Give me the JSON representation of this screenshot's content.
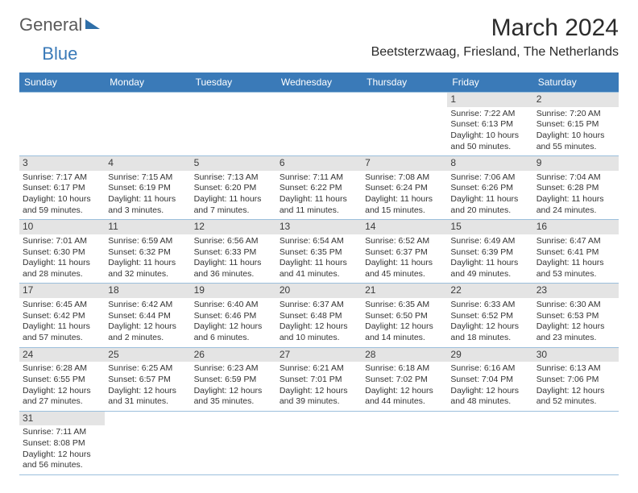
{
  "logo": {
    "part1": "General",
    "part2": "Blue"
  },
  "title": "March 2024",
  "location": "Beetsterzwaag, Friesland, The Netherlands",
  "columns": [
    "Sunday",
    "Monday",
    "Tuesday",
    "Wednesday",
    "Thursday",
    "Friday",
    "Saturday"
  ],
  "colors": {
    "header_bg": "#3a7ab8",
    "header_text": "#ffffff",
    "border": "#9bbfdc",
    "daynum_bg": "#e4e4e4",
    "text": "#333333"
  },
  "typography": {
    "title_fontsize": 30,
    "location_fontsize": 16,
    "header_fontsize": 12,
    "cell_fontsize": 10.5
  },
  "weeks": [
    [
      null,
      null,
      null,
      null,
      null,
      {
        "day": "1",
        "sunrise": "Sunrise: 7:22 AM",
        "sunset": "Sunset: 6:13 PM",
        "daylight": "Daylight: 10 hours and 50 minutes."
      },
      {
        "day": "2",
        "sunrise": "Sunrise: 7:20 AM",
        "sunset": "Sunset: 6:15 PM",
        "daylight": "Daylight: 10 hours and 55 minutes."
      }
    ],
    [
      {
        "day": "3",
        "sunrise": "Sunrise: 7:17 AM",
        "sunset": "Sunset: 6:17 PM",
        "daylight": "Daylight: 10 hours and 59 minutes."
      },
      {
        "day": "4",
        "sunrise": "Sunrise: 7:15 AM",
        "sunset": "Sunset: 6:19 PM",
        "daylight": "Daylight: 11 hours and 3 minutes."
      },
      {
        "day": "5",
        "sunrise": "Sunrise: 7:13 AM",
        "sunset": "Sunset: 6:20 PM",
        "daylight": "Daylight: 11 hours and 7 minutes."
      },
      {
        "day": "6",
        "sunrise": "Sunrise: 7:11 AM",
        "sunset": "Sunset: 6:22 PM",
        "daylight": "Daylight: 11 hours and 11 minutes."
      },
      {
        "day": "7",
        "sunrise": "Sunrise: 7:08 AM",
        "sunset": "Sunset: 6:24 PM",
        "daylight": "Daylight: 11 hours and 15 minutes."
      },
      {
        "day": "8",
        "sunrise": "Sunrise: 7:06 AM",
        "sunset": "Sunset: 6:26 PM",
        "daylight": "Daylight: 11 hours and 20 minutes."
      },
      {
        "day": "9",
        "sunrise": "Sunrise: 7:04 AM",
        "sunset": "Sunset: 6:28 PM",
        "daylight": "Daylight: 11 hours and 24 minutes."
      }
    ],
    [
      {
        "day": "10",
        "sunrise": "Sunrise: 7:01 AM",
        "sunset": "Sunset: 6:30 PM",
        "daylight": "Daylight: 11 hours and 28 minutes."
      },
      {
        "day": "11",
        "sunrise": "Sunrise: 6:59 AM",
        "sunset": "Sunset: 6:32 PM",
        "daylight": "Daylight: 11 hours and 32 minutes."
      },
      {
        "day": "12",
        "sunrise": "Sunrise: 6:56 AM",
        "sunset": "Sunset: 6:33 PM",
        "daylight": "Daylight: 11 hours and 36 minutes."
      },
      {
        "day": "13",
        "sunrise": "Sunrise: 6:54 AM",
        "sunset": "Sunset: 6:35 PM",
        "daylight": "Daylight: 11 hours and 41 minutes."
      },
      {
        "day": "14",
        "sunrise": "Sunrise: 6:52 AM",
        "sunset": "Sunset: 6:37 PM",
        "daylight": "Daylight: 11 hours and 45 minutes."
      },
      {
        "day": "15",
        "sunrise": "Sunrise: 6:49 AM",
        "sunset": "Sunset: 6:39 PM",
        "daylight": "Daylight: 11 hours and 49 minutes."
      },
      {
        "day": "16",
        "sunrise": "Sunrise: 6:47 AM",
        "sunset": "Sunset: 6:41 PM",
        "daylight": "Daylight: 11 hours and 53 minutes."
      }
    ],
    [
      {
        "day": "17",
        "sunrise": "Sunrise: 6:45 AM",
        "sunset": "Sunset: 6:42 PM",
        "daylight": "Daylight: 11 hours and 57 minutes."
      },
      {
        "day": "18",
        "sunrise": "Sunrise: 6:42 AM",
        "sunset": "Sunset: 6:44 PM",
        "daylight": "Daylight: 12 hours and 2 minutes."
      },
      {
        "day": "19",
        "sunrise": "Sunrise: 6:40 AM",
        "sunset": "Sunset: 6:46 PM",
        "daylight": "Daylight: 12 hours and 6 minutes."
      },
      {
        "day": "20",
        "sunrise": "Sunrise: 6:37 AM",
        "sunset": "Sunset: 6:48 PM",
        "daylight": "Daylight: 12 hours and 10 minutes."
      },
      {
        "day": "21",
        "sunrise": "Sunrise: 6:35 AM",
        "sunset": "Sunset: 6:50 PM",
        "daylight": "Daylight: 12 hours and 14 minutes."
      },
      {
        "day": "22",
        "sunrise": "Sunrise: 6:33 AM",
        "sunset": "Sunset: 6:52 PM",
        "daylight": "Daylight: 12 hours and 18 minutes."
      },
      {
        "day": "23",
        "sunrise": "Sunrise: 6:30 AM",
        "sunset": "Sunset: 6:53 PM",
        "daylight": "Daylight: 12 hours and 23 minutes."
      }
    ],
    [
      {
        "day": "24",
        "sunrise": "Sunrise: 6:28 AM",
        "sunset": "Sunset: 6:55 PM",
        "daylight": "Daylight: 12 hours and 27 minutes."
      },
      {
        "day": "25",
        "sunrise": "Sunrise: 6:25 AM",
        "sunset": "Sunset: 6:57 PM",
        "daylight": "Daylight: 12 hours and 31 minutes."
      },
      {
        "day": "26",
        "sunrise": "Sunrise: 6:23 AM",
        "sunset": "Sunset: 6:59 PM",
        "daylight": "Daylight: 12 hours and 35 minutes."
      },
      {
        "day": "27",
        "sunrise": "Sunrise: 6:21 AM",
        "sunset": "Sunset: 7:01 PM",
        "daylight": "Daylight: 12 hours and 39 minutes."
      },
      {
        "day": "28",
        "sunrise": "Sunrise: 6:18 AM",
        "sunset": "Sunset: 7:02 PM",
        "daylight": "Daylight: 12 hours and 44 minutes."
      },
      {
        "day": "29",
        "sunrise": "Sunrise: 6:16 AM",
        "sunset": "Sunset: 7:04 PM",
        "daylight": "Daylight: 12 hours and 48 minutes."
      },
      {
        "day": "30",
        "sunrise": "Sunrise: 6:13 AM",
        "sunset": "Sunset: 7:06 PM",
        "daylight": "Daylight: 12 hours and 52 minutes."
      }
    ],
    [
      {
        "day": "31",
        "sunrise": "Sunrise: 7:11 AM",
        "sunset": "Sunset: 8:08 PM",
        "daylight": "Daylight: 12 hours and 56 minutes."
      },
      null,
      null,
      null,
      null,
      null,
      null
    ]
  ]
}
